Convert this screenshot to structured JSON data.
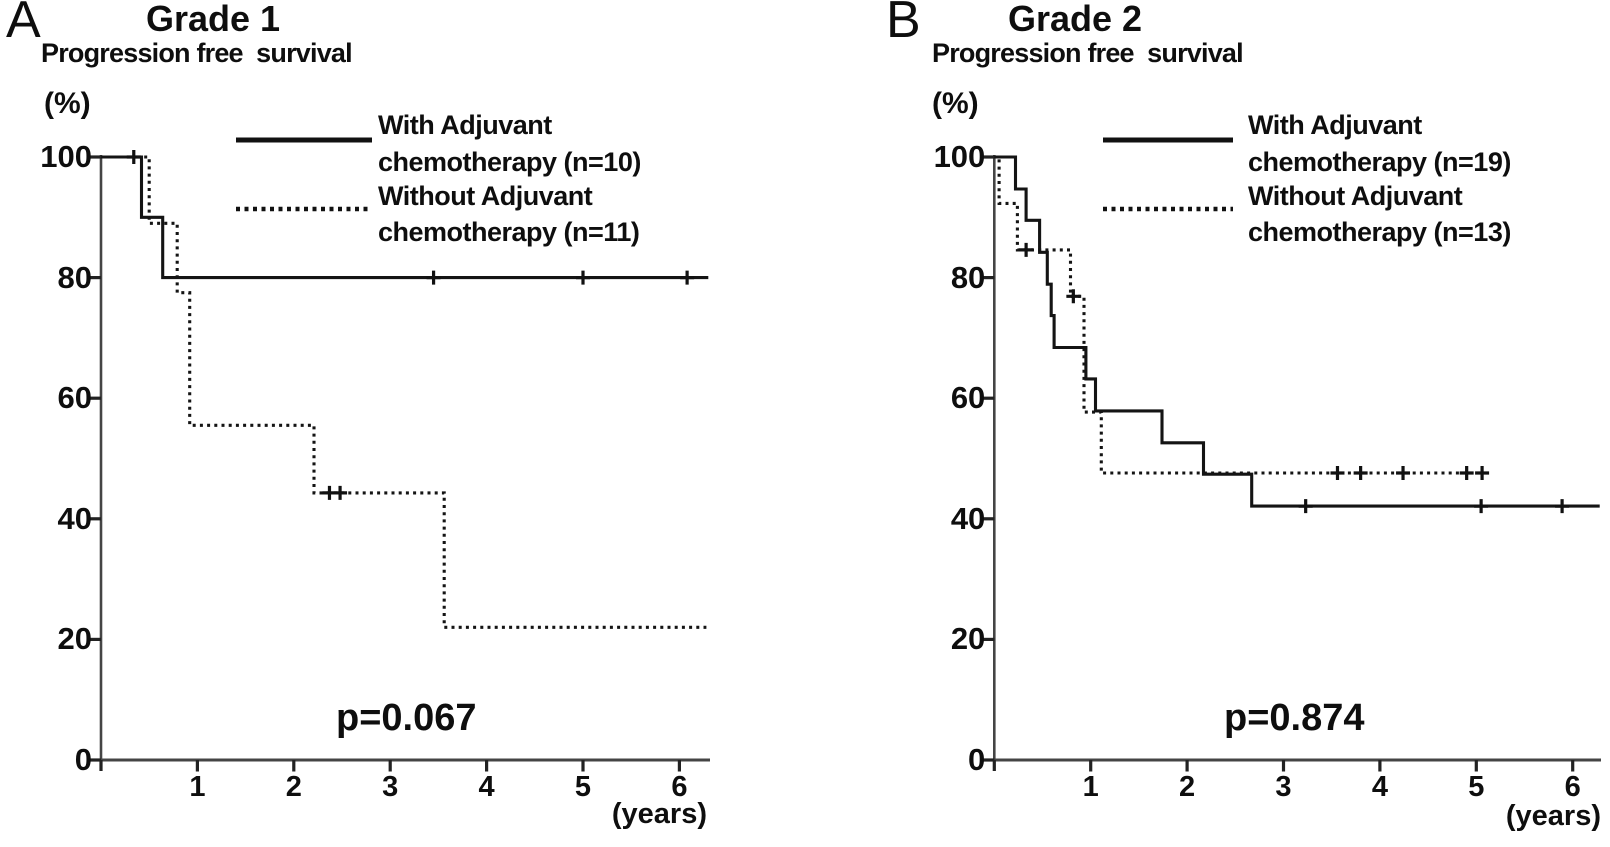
{
  "panels": [
    {
      "label": "A",
      "title": "Grade 1",
      "subtitle": "Progression free  survival",
      "y_unit": "(%)",
      "x_unit": "(years)",
      "p_value": "p=0.067",
      "legend": [
        {
          "name_line1": "With Adjuvant",
          "name_line2": "chemotherapy (n=10)",
          "style": "solid"
        },
        {
          "name_line1": "Without Adjuvant",
          "name_line2": "chemotherapy (n=11)",
          "style": "dotted"
        }
      ]
    },
    {
      "label": "B",
      "title": "Grade 2",
      "subtitle": "Progression free  survival",
      "y_unit": "(%)",
      "x_unit": "(years)",
      "p_value": "p=0.874",
      "legend": [
        {
          "name_line1": "With Adjuvant",
          "name_line2": "chemotherapy (n=19)",
          "style": "solid"
        },
        {
          "name_line1": "Without Adjuvant",
          "name_line2": "chemotherapy (n=13)",
          "style": "dotted"
        }
      ]
    }
  ],
  "chart_data": [
    {
      "type": "line",
      "subtype": "kaplan-meier-step",
      "title": "Grade 1",
      "subtitle": "Progression free survival",
      "xlabel": "(years)",
      "ylabel": "(%)",
      "xlim": [
        0,
        6.3
      ],
      "ylim": [
        0,
        100
      ],
      "x_ticks": [
        1,
        2,
        3,
        4,
        5,
        6
      ],
      "y_ticks": [
        100,
        80,
        60,
        40,
        20,
        0
      ],
      "grid": false,
      "legend_position": "top-right",
      "p_value": "p=0.067",
      "series": [
        {
          "name": "With Adjuvant chemotherapy (n=10)",
          "line_style": "solid",
          "steps": [
            [
              0,
              100
            ],
            [
              0.42,
              90
            ],
            [
              0.64,
              80
            ],
            [
              6.3,
              80
            ]
          ],
          "censor_marks": [
            [
              0.34,
              100
            ],
            [
              3.45,
              80
            ],
            [
              5.0,
              80
            ],
            [
              6.08,
              80
            ]
          ]
        },
        {
          "name": "Without Adjuvant chemotherapy (n=11)",
          "line_style": "dotted",
          "steps": [
            [
              0,
              100
            ],
            [
              0.5,
              89
            ],
            [
              0.79,
              77.5
            ],
            [
              0.92,
              55.5
            ],
            [
              2.21,
              44.3
            ],
            [
              3.56,
              22
            ],
            [
              6.28,
              22
            ]
          ],
          "censor_marks": [
            [
              2.37,
              44.3
            ],
            [
              2.48,
              44.3
            ]
          ]
        }
      ]
    },
    {
      "type": "line",
      "subtype": "kaplan-meier-step",
      "title": "Grade 2",
      "subtitle": "Progression free survival",
      "xlabel": "(years)",
      "ylabel": "(%)",
      "xlim": [
        0,
        6.3
      ],
      "ylim": [
        0,
        100
      ],
      "x_ticks": [
        1,
        2,
        3,
        4,
        5,
        6
      ],
      "y_ticks": [
        100,
        80,
        60,
        40,
        20,
        0
      ],
      "grid": false,
      "legend_position": "top-right",
      "p_value": "p=0.874",
      "series": [
        {
          "name": "With Adjuvant chemotherapy (n=19)",
          "line_style": "solid",
          "steps": [
            [
              0,
              100
            ],
            [
              0.22,
              94.7
            ],
            [
              0.33,
              89.5
            ],
            [
              0.47,
              84.2
            ],
            [
              0.55,
              78.9
            ],
            [
              0.59,
              73.7
            ],
            [
              0.62,
              68.4
            ],
            [
              0.95,
              63.2
            ],
            [
              1.05,
              57.9
            ],
            [
              1.74,
              52.6
            ],
            [
              2.17,
              47.4
            ],
            [
              2.67,
              42.1
            ],
            [
              6.28,
              42.1
            ]
          ],
          "censor_marks": [
            [
              3.23,
              42.1
            ],
            [
              5.05,
              42.1
            ],
            [
              5.89,
              42.1
            ]
          ]
        },
        {
          "name": "Without Adjuvant chemotherapy (n=13)",
          "line_style": "dotted",
          "steps": [
            [
              0,
              100
            ],
            [
              0.05,
              92.3
            ],
            [
              0.24,
              84.6
            ],
            [
              0.79,
              76.9
            ],
            [
              0.93,
              57.7
            ],
            [
              1.11,
              47.6
            ],
            [
              5.13,
              47.6
            ]
          ],
          "censor_marks": [
            [
              0.33,
              84.6
            ],
            [
              0.82,
              76.9
            ],
            [
              3.56,
              47.6
            ],
            [
              3.8,
              47.6
            ],
            [
              4.24,
              47.6
            ],
            [
              4.9,
              47.6
            ],
            [
              5.06,
              47.6
            ]
          ]
        }
      ]
    }
  ]
}
